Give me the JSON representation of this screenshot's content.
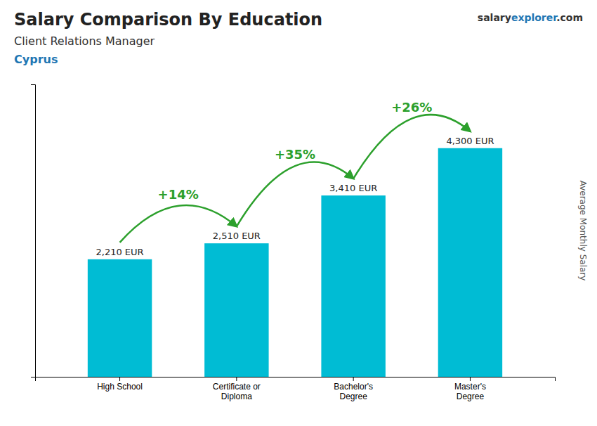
{
  "chart_data": {
    "type": "bar",
    "title": "Salary Comparison By Education",
    "subtitle": "Client Relations Manager",
    "annotations": [
      {
        "text": "Cyprus"
      },
      {
        "text": "salary"
      },
      {
        "text": "explorer"
      },
      {
        "text": ".com"
      },
      {
        "text": "+14%",
        "from": "High School",
        "to": "Certificate or\nDiploma"
      },
      {
        "text": "+35%",
        "from": "Certificate or\nDiploma",
        "to": "Bachelor's\nDegree"
      },
      {
        "text": "+26%",
        "from": "Bachelor's\nDegree",
        "to": "Master's\nDegree"
      }
    ],
    "ylabel": "Average Monthly Salary",
    "categories": [
      "High School",
      "Certificate or\nDiploma",
      "Bachelor's\nDegree",
      "Master's\nDegree"
    ],
    "values": [
      2210,
      2510,
      3410,
      4300
    ],
    "value_labels": [
      "2,210 EUR",
      "2,510 EUR",
      "3,410 EUR",
      "4,300 EUR"
    ],
    "data_labels": true,
    "color": "#00bcd4",
    "ylim": [
      0,
      5500
    ],
    "yticks": [],
    "tick_labels": "x",
    "grid": false
  }
}
